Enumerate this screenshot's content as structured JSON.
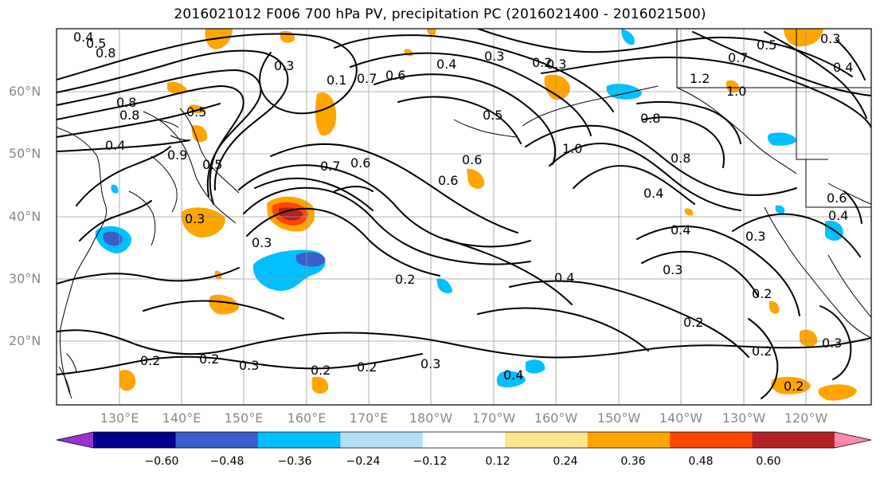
{
  "title": "2016021012 F006 700 hPa PV, precipitation PC (2016021400 - 2016021500)",
  "lat_labels": [
    "60°N",
    "50°N",
    "40°N",
    "30°N",
    "20°N"
  ],
  "lon_labels": [
    "130°E",
    "140°E",
    "150°E",
    "160°E",
    "170°E",
    "180°W",
    "170°W",
    "160°W",
    "150°W",
    "140°W",
    "130°W",
    "120°W"
  ],
  "colorbar": {
    "colors": [
      "#9b30d0",
      "#00008b",
      "#3a5fcd",
      "#00bfff",
      "#b3e0f7",
      "#ffffff",
      "#ffe68a",
      "#ffa500",
      "#ff4500",
      "#b22222",
      "#ff88b0"
    ],
    "tick_labels": [
      "−0.60",
      "−0.48",
      "−0.36",
      "−0.24",
      "−0.12",
      "0.12",
      "0.24",
      "0.36",
      "0.48",
      "0.60"
    ]
  },
  "contour_labels": [
    "0.4",
    "0.5",
    "0.8",
    "0.3",
    "0.1",
    "0.7",
    "0.6",
    "0.4",
    "0.3",
    "0.2",
    "0.3",
    "0.5",
    "0.7",
    "1.2",
    "1.0",
    "0.3",
    "0.4",
    "0.8",
    "0.8",
    "0.5",
    "0.9",
    "0.4",
    "0.5",
    "0.7",
    "0.6",
    "0.6",
    "0.6",
    "0.5",
    "1.0",
    "0.8",
    "0.8",
    "0.4",
    "0.4",
    "0.6",
    "0.4",
    "0.3",
    "0.3",
    "0.2",
    "0.2",
    "0.3",
    "0.3",
    "0.2",
    "0.4",
    "0.2",
    "0.2",
    "0.3",
    "0.2",
    "0.2",
    "0.3",
    "0.4",
    "0.2",
    "0.3",
    "0.2"
  ]
}
